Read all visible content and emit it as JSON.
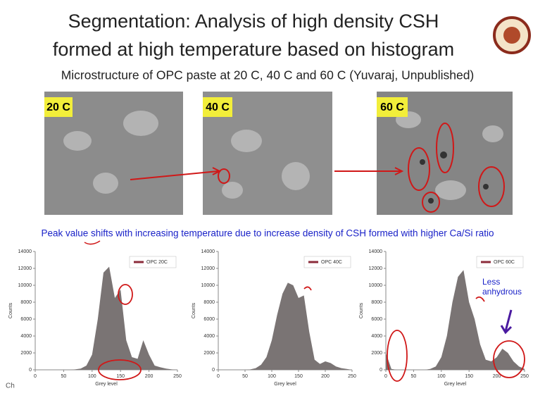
{
  "slide": {
    "title_lines": [
      "Segmentation: Analysis of high density CSH",
      "formed at high temperature based on histogram"
    ],
    "subtitle": "Microstructure of OPC paste at 20 C, 40 C and 60 C (Yuvaraj, Unpublished)",
    "image_labels": [
      "20 C",
      "40 C",
      "60 C"
    ],
    "caption": "Peak value shifts with increasing temperature due to increase density of CSH formed with higher Ca/Si ratio",
    "footer": "Ch"
  },
  "chart_data": [
    {
      "type": "area",
      "x_label": "Grey level",
      "y_label": "Counts",
      "x": [
        0,
        10,
        20,
        30,
        40,
        50,
        60,
        70,
        80,
        90,
        100,
        110,
        120,
        130,
        140,
        150,
        160,
        170,
        180,
        190,
        200,
        210,
        220,
        230,
        240,
        250
      ],
      "series": [
        {
          "name": "OPC 20C",
          "color": "#7a7474",
          "values": [
            0,
            0,
            0,
            0,
            0,
            0,
            0,
            50,
            150,
            500,
            1800,
            6000,
            11500,
            12200,
            8500,
            9500,
            3500,
            1500,
            1300,
            3500,
            1800,
            500,
            300,
            150,
            50,
            0
          ]
        }
      ],
      "xlim": [
        0,
        250
      ],
      "xticks": [
        0,
        50,
        100,
        150,
        200,
        250
      ],
      "ylim": [
        0,
        14000
      ],
      "yticks": [
        0,
        2000,
        4000,
        6000,
        8000,
        10000,
        12000,
        14000
      ]
    },
    {
      "type": "area",
      "x_label": "Grey level",
      "y_label": "Counts",
      "x": [
        0,
        10,
        20,
        30,
        40,
        50,
        60,
        70,
        80,
        90,
        100,
        110,
        120,
        130,
        140,
        150,
        160,
        170,
        180,
        190,
        200,
        210,
        220,
        230,
        240,
        250
      ],
      "series": [
        {
          "name": "OPC 40C",
          "color": "#7a7474",
          "values": [
            0,
            0,
            0,
            0,
            0,
            0,
            50,
            200,
            600,
            1500,
            3500,
            6500,
            9000,
            10300,
            10000,
            8500,
            8800,
            4500,
            1200,
            700,
            1000,
            800,
            400,
            200,
            100,
            0
          ]
        }
      ],
      "xlim": [
        0,
        250
      ],
      "xticks": [
        0,
        50,
        100,
        150,
        200,
        250
      ],
      "ylim": [
        0,
        14000
      ],
      "yticks": [
        0,
        2000,
        4000,
        6000,
        8000,
        10000,
        12000,
        14000
      ]
    },
    {
      "type": "area",
      "x_label": "Grey level",
      "y_label": "Counts",
      "annotation": "Less anhydrous",
      "x": [
        0,
        10,
        20,
        30,
        40,
        50,
        60,
        70,
        80,
        90,
        100,
        110,
        120,
        130,
        140,
        150,
        160,
        170,
        180,
        190,
        200,
        210,
        220,
        230,
        240,
        250
      ],
      "series": [
        {
          "name": "OPC 60C",
          "color": "#7a7474",
          "values": [
            2000,
            100,
            0,
            0,
            0,
            0,
            0,
            0,
            100,
            400,
            1500,
            4000,
            8000,
            11000,
            11800,
            8000,
            6000,
            3000,
            1200,
            1000,
            1500,
            2500,
            2000,
            1000,
            400,
            100
          ]
        }
      ],
      "xlim": [
        0,
        250
      ],
      "xticks": [
        0,
        50,
        100,
        150,
        200,
        250
      ],
      "ylim": [
        0,
        14000
      ],
      "yticks": [
        0,
        2000,
        4000,
        6000,
        8000,
        10000,
        12000,
        14000
      ]
    }
  ]
}
